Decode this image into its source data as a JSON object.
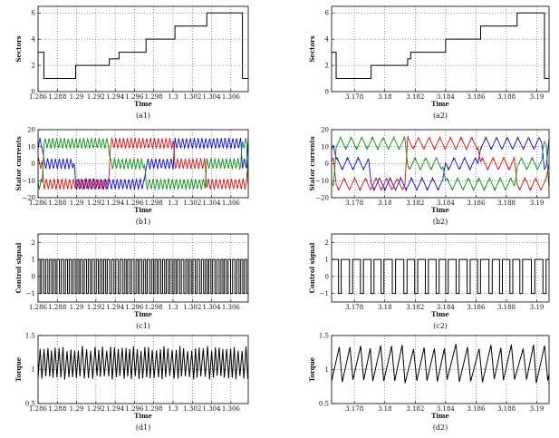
{
  "chart_data": [
    {
      "id": "a1",
      "type": "line",
      "caption": "(a1)",
      "xlabel": "Time",
      "ylabel": "Sectors",
      "xlim": [
        1.286,
        1.3078
      ],
      "ylim": [
        0,
        6.5
      ],
      "xticks": [
        1.286,
        1.288,
        1.29,
        1.292,
        1.294,
        1.296,
        1.298,
        1.3,
        1.302,
        1.304,
        1.306
      ],
      "xtick_labels": [
        "1.286",
        "1.288",
        "1.29",
        "1.292",
        "1.294",
        "1.296",
        "1.298",
        "1.3",
        "1.302",
        "1.304",
        "1.306"
      ],
      "yticks": [
        0,
        2,
        4,
        6
      ],
      "ytick_labels": [
        "0",
        "2",
        "4",
        "6"
      ],
      "grid": true,
      "series": [
        {
          "color": "#000000",
          "style": "step",
          "x": [
            1.286,
            1.2866,
            1.2866,
            1.2899,
            1.2899,
            1.2934,
            1.2934,
            1.2944,
            1.2944,
            1.2972,
            1.2972,
            1.3002,
            1.3002,
            1.3035,
            1.3035,
            1.3072,
            1.3072,
            1.3078
          ],
          "y": [
            3,
            3,
            1,
            1,
            2,
            2,
            2.5,
            2.5,
            3,
            3,
            4,
            4,
            5,
            5,
            6,
            6,
            1,
            1
          ]
        }
      ]
    },
    {
      "id": "a2",
      "type": "line",
      "caption": "(a2)",
      "xlabel": "Time",
      "ylabel": "Sectors",
      "xlim": [
        3.1765,
        3.1908
      ],
      "ylim": [
        0,
        6.5
      ],
      "xticks": [
        3.178,
        3.18,
        3.182,
        3.184,
        3.186,
        3.188,
        3.19
      ],
      "xtick_labels": [
        "3.178",
        "3.18",
        "3.182",
        "3.184",
        "3.186",
        "3.188",
        "3.19"
      ],
      "yticks": [
        0,
        2,
        4,
        6
      ],
      "ytick_labels": [
        "0",
        "2",
        "4",
        "6"
      ],
      "grid": true,
      "series": [
        {
          "color": "#000000",
          "style": "step",
          "x": [
            3.1765,
            3.1768,
            3.1768,
            3.1791,
            3.1791,
            3.1815,
            3.1815,
            3.1817,
            3.1817,
            3.184,
            3.184,
            3.1863,
            3.1863,
            3.1887,
            3.1887,
            3.1905,
            3.1905,
            3.1908
          ],
          "y": [
            3,
            3,
            1,
            1,
            2,
            2,
            2.5,
            2.5,
            3,
            3,
            4,
            4,
            5,
            5,
            6,
            6,
            1,
            1
          ]
        }
      ]
    },
    {
      "id": "b1",
      "type": "line",
      "caption": "(b1)",
      "xlabel": "Time",
      "ylabel": "Stator currents",
      "xlim": [
        1.286,
        1.3078
      ],
      "ylim": [
        -20,
        20
      ],
      "xticks": [
        1.286,
        1.288,
        1.29,
        1.292,
        1.294,
        1.296,
        1.298,
        1.3,
        1.302,
        1.304,
        1.306
      ],
      "xtick_labels": [
        "1.286",
        "1.288",
        "1.29",
        "1.292",
        "1.294",
        "1.296",
        "1.298",
        "1.3",
        "1.302",
        "1.304",
        "1.306"
      ],
      "yticks": [
        -20,
        -10,
        0,
        10,
        20
      ],
      "ytick_labels": [
        "−20",
        "−10",
        "0",
        "10",
        "20"
      ],
      "grid": true,
      "series": [
        {
          "color": "#0a0ae0",
          "style": "ripple",
          "mode": "staircase",
          "ripple_amp": 3.5,
          "ripple_period": 0.0004,
          "x": [
            1.286,
            1.2866,
            1.2899,
            1.2935,
            1.2972,
            1.3002,
            1.3035,
            1.3072,
            1.3078
          ],
          "y": [
            12,
            0,
            -12,
            -12,
            0,
            12,
            12,
            0,
            12
          ]
        },
        {
          "color": "#e01010",
          "style": "ripple",
          "mode": "staircase",
          "ripple_amp": 3.5,
          "ripple_period": 0.0004,
          "x": [
            1.286,
            1.2866,
            1.2899,
            1.2935,
            1.2972,
            1.3002,
            1.3035,
            1.3072,
            1.3078
          ],
          "y": [
            0,
            -12,
            -12,
            12,
            12,
            0,
            -12,
            -12,
            0
          ]
        },
        {
          "color": "#10901a",
          "style": "ripple",
          "mode": "staircase",
          "ripple_amp": 3.5,
          "ripple_period": 0.0004,
          "x": [
            1.286,
            1.2866,
            1.2899,
            1.2935,
            1.2972,
            1.3002,
            1.3035,
            1.3072,
            1.3078
          ],
          "y": [
            -12,
            12,
            12,
            0,
            -12,
            -12,
            0,
            12,
            -12
          ]
        }
      ]
    },
    {
      "id": "b2",
      "type": "line",
      "caption": "(b2)",
      "xlabel": "Time",
      "ylabel": "Stator currents",
      "xlim": [
        3.1765,
        3.1908
      ],
      "ylim": [
        -20,
        20
      ],
      "xticks": [
        3.178,
        3.18,
        3.182,
        3.184,
        3.186,
        3.188,
        3.19
      ],
      "xtick_labels": [
        "3.178",
        "3.18",
        "3.182",
        "3.184",
        "3.186",
        "3.188",
        "3.19"
      ],
      "yticks": [
        -20,
        -10,
        0,
        10,
        20
      ],
      "ytick_labels": [
        "−20",
        "−10",
        "0",
        "10",
        "20"
      ],
      "grid": true,
      "series": [
        {
          "color": "#0a0ae0",
          "style": "ripple",
          "mode": "staircase",
          "ripple_amp": 4,
          "ripple_period": 0.0007,
          "x": [
            3.1765,
            3.1768,
            3.1791,
            3.1815,
            3.184,
            3.1863,
            3.1887,
            3.1905,
            3.1908
          ],
          "y": [
            12,
            0,
            -12,
            -12,
            0,
            12,
            12,
            0,
            12
          ]
        },
        {
          "color": "#e01010",
          "style": "ripple",
          "mode": "staircase",
          "ripple_amp": 4,
          "ripple_period": 0.0007,
          "x": [
            3.1765,
            3.1768,
            3.1791,
            3.1815,
            3.184,
            3.1863,
            3.1887,
            3.1905,
            3.1908
          ],
          "y": [
            0,
            -12,
            -12,
            12,
            12,
            0,
            -12,
            -12,
            0
          ]
        },
        {
          "color": "#10901a",
          "style": "ripple",
          "mode": "staircase",
          "ripple_amp": 4,
          "ripple_period": 0.0007,
          "x": [
            3.1765,
            3.1768,
            3.1791,
            3.1815,
            3.184,
            3.1863,
            3.1887,
            3.1905,
            3.1908
          ],
          "y": [
            -12,
            12,
            12,
            0,
            -12,
            -12,
            0,
            12,
            -12
          ]
        }
      ]
    },
    {
      "id": "c1",
      "type": "line",
      "caption": "(c1)",
      "xlabel": "Time",
      "ylabel": "Control signal",
      "xlim": [
        1.286,
        1.3078
      ],
      "ylim": [
        -1.5,
        2.5
      ],
      "xticks": [
        1.286,
        1.288,
        1.29,
        1.292,
        1.294,
        1.296,
        1.298,
        1.3,
        1.302,
        1.304,
        1.306
      ],
      "xtick_labels": [
        "1.286",
        "1.288",
        "1.29",
        "1.292",
        "1.294",
        "1.296",
        "1.298",
        "1.3",
        "1.302",
        "1.304",
        "1.306"
      ],
      "yticks": [
        -1,
        0,
        1,
        2
      ],
      "ytick_labels": [
        "−1",
        "0",
        "1",
        "2"
      ],
      "grid": true,
      "series": [
        {
          "color": "#000000",
          "style": "pulse",
          "high": 1,
          "low": -1,
          "pulse_period": 0.0004,
          "duty": 0.55
        }
      ]
    },
    {
      "id": "c2",
      "type": "line",
      "caption": "(c2)",
      "xlabel": "Time",
      "ylabel": "Control signal",
      "xlim": [
        3.1765,
        3.1908
      ],
      "ylim": [
        -1.5,
        2.5
      ],
      "xticks": [
        3.178,
        3.18,
        3.182,
        3.184,
        3.186,
        3.188,
        3.19
      ],
      "xtick_labels": [
        "3.178",
        "3.18",
        "3.182",
        "3.184",
        "3.186",
        "3.188",
        "3.19"
      ],
      "yticks": [
        -1,
        0,
        1,
        2
      ],
      "ytick_labels": [
        "−1",
        "0",
        "1",
        "2"
      ],
      "grid": true,
      "series": [
        {
          "color": "#000000",
          "style": "pulse",
          "high": 1,
          "low": -1,
          "pulse_period": 0.0007,
          "duty": 0.72
        }
      ]
    },
    {
      "id": "d1",
      "type": "line",
      "caption": "(d1)",
      "xlabel": "Time",
      "ylabel": "Torque",
      "xlim": [
        1.286,
        1.3078
      ],
      "ylim": [
        0.5,
        1.5
      ],
      "xticks": [
        1.286,
        1.288,
        1.29,
        1.292,
        1.294,
        1.296,
        1.298,
        1.3,
        1.302,
        1.304,
        1.306
      ],
      "xtick_labels": [
        "1.286",
        "1.288",
        "1.29",
        "1.292",
        "1.294",
        "1.296",
        "1.298",
        "1.3",
        "1.302",
        "1.304",
        "1.306"
      ],
      "yticks": [
        0.5,
        1,
        1.5
      ],
      "ytick_labels": [
        "0.5",
        "1",
        "1.5"
      ],
      "grid": true,
      "series": [
        {
          "color": "#000000",
          "style": "sawtooth",
          "period": 0.0004,
          "rise": 0.55,
          "min": 0.85,
          "max": 1.35
        }
      ]
    },
    {
      "id": "d2",
      "type": "line",
      "caption": "(d2)",
      "xlabel": "Time",
      "ylabel": "Torque",
      "xlim": [
        3.1765,
        3.1908
      ],
      "ylim": [
        0.5,
        1.5
      ],
      "xticks": [
        3.178,
        3.18,
        3.182,
        3.184,
        3.186,
        3.188,
        3.19
      ],
      "xtick_labels": [
        "3.178",
        "3.18",
        "3.182",
        "3.184",
        "3.186",
        "3.188",
        "3.19"
      ],
      "yticks": [
        0.5,
        1,
        1.5
      ],
      "ytick_labels": [
        "0.5",
        "1",
        "1.5"
      ],
      "grid": true,
      "series": [
        {
          "color": "#000000",
          "style": "sawtooth",
          "period": 0.0007,
          "rise": 0.72,
          "min": 0.8,
          "max": 1.38
        }
      ]
    }
  ]
}
